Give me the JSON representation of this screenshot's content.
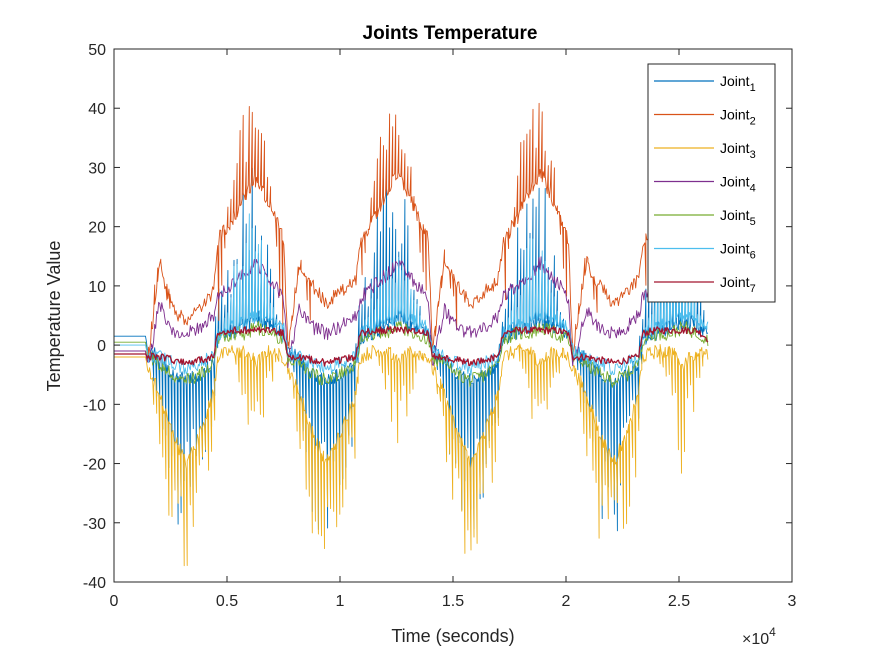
{
  "chart_data": {
    "type": "line",
    "title": "Joints Temperature",
    "xlabel": "Time (seconds)",
    "ylabel": "Temperature Value",
    "x_exponent_label": "×10",
    "x_exponent_power": "4",
    "xlim": [
      0,
      30000
    ],
    "ylim": [
      -40,
      50
    ],
    "xticks": [
      0,
      5000,
      10000,
      15000,
      20000,
      25000,
      30000
    ],
    "xtick_labels": [
      "0",
      "0.5",
      "1",
      "1.5",
      "2",
      "2.5",
      "3"
    ],
    "yticks": [
      -40,
      -30,
      -20,
      -10,
      0,
      10,
      20,
      30,
      40,
      50
    ],
    "ytick_labels": [
      "-40",
      "-30",
      "-20",
      "-10",
      "0",
      "10",
      "20",
      "30",
      "40",
      "50"
    ],
    "grid": false,
    "legend_position": "top-right",
    "x": [
      0,
      1400,
      1500,
      2000,
      2600,
      3200,
      3800,
      4400,
      4600,
      5200,
      5800,
      6300,
      6900,
      7500,
      7700,
      8200,
      8800,
      9400,
      10000,
      10700,
      10900,
      11500,
      12100,
      12600,
      13200,
      13900,
      14100,
      14600,
      15200,
      15800,
      16400,
      17000,
      17200,
      17800,
      18400,
      18900,
      19500,
      20100,
      20300,
      20900,
      21500,
      22100,
      22700,
      23200,
      23400,
      24000,
      24600,
      25200,
      25800,
      26300
    ],
    "series": [
      {
        "name": "Joint",
        "sub": "1",
        "color": "#0072BD",
        "values": [
          1.5,
          1.5,
          -1,
          -2,
          -5,
          -6,
          -5,
          -3,
          1,
          2,
          3,
          4,
          3,
          2,
          -1,
          -2,
          -5,
          -6,
          -5,
          -3,
          1,
          2,
          3,
          4,
          3,
          2,
          -1,
          -2,
          -5,
          -6,
          -5,
          -3,
          1,
          2,
          3,
          4,
          3,
          2,
          -1,
          -2,
          -5,
          -6,
          -5,
          -3,
          1,
          2,
          3,
          4,
          3,
          2
        ],
        "spike_down": [
          0,
          0,
          0,
          -12,
          -30,
          -34,
          -25,
          -15,
          0,
          0,
          0,
          0,
          0,
          0,
          0,
          -12,
          -30,
          -34,
          -25,
          -15,
          0,
          0,
          0,
          0,
          0,
          0,
          0,
          -12,
          -30,
          -34,
          -25,
          -15,
          0,
          0,
          0,
          0,
          0,
          0,
          0,
          -12,
          -30,
          -34,
          -25,
          -15,
          0,
          0,
          0,
          0,
          0,
          0
        ],
        "spike_up": [
          0,
          0,
          0,
          0,
          0,
          0,
          0,
          0,
          10,
          20,
          33,
          34,
          15,
          0,
          0,
          0,
          0,
          0,
          0,
          0,
          10,
          20,
          33,
          34,
          15,
          0,
          0,
          0,
          0,
          0,
          0,
          0,
          10,
          20,
          33,
          34,
          15,
          0,
          0,
          0,
          0,
          0,
          0,
          0,
          10,
          20,
          33,
          34,
          15,
          0
        ]
      },
      {
        "name": "Joint",
        "sub": "2",
        "color": "#D95319",
        "values": [
          -1,
          -1,
          -4,
          14,
          6,
          4,
          6,
          9,
          18,
          21,
          25,
          28,
          24,
          18,
          -1,
          14,
          10,
          7,
          9,
          11,
          17,
          21,
          26,
          29,
          24,
          18,
          -1,
          14,
          10,
          7,
          9,
          11,
          17,
          21,
          26,
          29,
          24,
          18,
          -1,
          14,
          10,
          7,
          9,
          11,
          17,
          21,
          26,
          29,
          24,
          18
        ],
        "spike_down": [
          0,
          0,
          0,
          0,
          0,
          0,
          0,
          0,
          0,
          0,
          0,
          0,
          0,
          0,
          0,
          0,
          0,
          0,
          0,
          0,
          0,
          0,
          0,
          0,
          0,
          0,
          0,
          0,
          0,
          0,
          0,
          0,
          0,
          0,
          0,
          0,
          0,
          0,
          0,
          0,
          0,
          0,
          0,
          0,
          0,
          0,
          0,
          0,
          0,
          0
        ],
        "spike_up": [
          0,
          0,
          0,
          17,
          0,
          0,
          0,
          0,
          0,
          32,
          40,
          43,
          30,
          0,
          0,
          17,
          0,
          0,
          0,
          0,
          0,
          32,
          40,
          42,
          30,
          0,
          0,
          17,
          0,
          0,
          0,
          0,
          0,
          32,
          40,
          44,
          30,
          0,
          0,
          17,
          0,
          0,
          0,
          0,
          0,
          32,
          38,
          40,
          30,
          0
        ]
      },
      {
        "name": "Joint",
        "sub": "3",
        "color": "#EDB120",
        "values": [
          -2,
          -2,
          -4,
          -8,
          -15,
          -20,
          -15,
          -8,
          -2,
          -1,
          -1,
          -3,
          -1,
          -2,
          -4,
          -8,
          -15,
          -20,
          -15,
          -8,
          -2,
          -1,
          -1,
          -3,
          -1,
          -2,
          -4,
          -8,
          -15,
          -20,
          -15,
          -8,
          -2,
          -1,
          -1,
          -3,
          -1,
          -2,
          -4,
          -8,
          -15,
          -20,
          -15,
          -8,
          -2,
          -1,
          -1,
          -3,
          -1,
          -2
        ],
        "spike_down": [
          0,
          0,
          0,
          -20,
          -35,
          -39,
          -30,
          -20,
          0,
          0,
          -12,
          -18,
          -8,
          0,
          0,
          -20,
          -35,
          -38,
          -30,
          -20,
          0,
          0,
          -12,
          -18,
          -8,
          0,
          0,
          -20,
          -35,
          -38,
          -30,
          -20,
          0,
          0,
          -12,
          -18,
          -8,
          0,
          0,
          -20,
          -35,
          -38,
          -30,
          -20,
          0,
          0,
          -12,
          -24,
          -8,
          0
        ],
        "spike_up": [
          0,
          0,
          0,
          0,
          0,
          0,
          0,
          0,
          0,
          0,
          0,
          0,
          0,
          0,
          0,
          0,
          0,
          0,
          0,
          0,
          0,
          0,
          0,
          0,
          0,
          0,
          0,
          0,
          0,
          0,
          0,
          0,
          0,
          0,
          0,
          0,
          0,
          0,
          0,
          0,
          0,
          0,
          0,
          0,
          0,
          0,
          0,
          0,
          0,
          0
        ]
      },
      {
        "name": "Joint",
        "sub": "4",
        "color": "#7E2F8E",
        "values": [
          -1,
          -1,
          -4,
          7,
          2,
          2,
          3,
          5,
          8,
          10,
          12,
          14,
          11,
          8,
          -3,
          6,
          3,
          2,
          3,
          5,
          8,
          10,
          12,
          14,
          11,
          8,
          -3,
          6,
          3,
          2,
          3,
          5,
          8,
          10,
          12,
          14,
          11,
          8,
          -3,
          6,
          3,
          2,
          3,
          5,
          8,
          10,
          12,
          14,
          11,
          8
        ],
        "spike_down": [
          0,
          0,
          0,
          0,
          0,
          0,
          0,
          0,
          0,
          0,
          0,
          0,
          0,
          0,
          0,
          0,
          0,
          0,
          0,
          0,
          0,
          0,
          0,
          0,
          0,
          0,
          0,
          0,
          0,
          0,
          0,
          0,
          0,
          0,
          0,
          0,
          0,
          0,
          0,
          0,
          0,
          0,
          0,
          0,
          0,
          0,
          0,
          0,
          0,
          0
        ],
        "spike_up": [
          0,
          0,
          0,
          0,
          0,
          0,
          0,
          0,
          0,
          0,
          0,
          0,
          0,
          0,
          0,
          0,
          0,
          0,
          0,
          0,
          0,
          0,
          0,
          0,
          0,
          0,
          0,
          0,
          0,
          0,
          0,
          0,
          0,
          0,
          0,
          0,
          0,
          0,
          0,
          0,
          0,
          0,
          0,
          0,
          0,
          0,
          0,
          0,
          0,
          0
        ]
      },
      {
        "name": "Joint",
        "sub": "5",
        "color": "#77AC30",
        "values": [
          0.5,
          0.5,
          -2,
          -3,
          -5,
          -6,
          -5,
          -3,
          1,
          2,
          2,
          3,
          2,
          1,
          -2,
          -3,
          -5,
          -6,
          -5,
          -3,
          1,
          2,
          2,
          3,
          2,
          1,
          -2,
          -3,
          -5,
          -6,
          -5,
          -3,
          1,
          2,
          2,
          3,
          2,
          1,
          -2,
          -3,
          -5,
          -6,
          -5,
          -3,
          1,
          2,
          2,
          3,
          2,
          1
        ],
        "spike_down": [
          0,
          0,
          0,
          0,
          0,
          0,
          0,
          0,
          0,
          0,
          0,
          0,
          0,
          0,
          0,
          0,
          0,
          0,
          0,
          0,
          0,
          0,
          0,
          0,
          0,
          0,
          0,
          0,
          0,
          0,
          0,
          0,
          0,
          0,
          0,
          0,
          0,
          0,
          0,
          0,
          0,
          0,
          0,
          0,
          0,
          0,
          0,
          0,
          0,
          0
        ],
        "spike_up": [
          0,
          0,
          0,
          0,
          0,
          0,
          0,
          0,
          0,
          0,
          0,
          0,
          0,
          0,
          0,
          0,
          0,
          0,
          0,
          0,
          0,
          0,
          0,
          0,
          0,
          0,
          0,
          0,
          0,
          0,
          0,
          0,
          0,
          0,
          0,
          0,
          0,
          0,
          0,
          0,
          0,
          0,
          0,
          0,
          0,
          0,
          0,
          0,
          0,
          0
        ]
      },
      {
        "name": "Joint",
        "sub": "6",
        "color": "#4DBEEE",
        "values": [
          0,
          0,
          -2,
          -2,
          -3,
          -4,
          -3,
          -2,
          2,
          3,
          4,
          5,
          4,
          3,
          -1,
          -2,
          -3,
          -4,
          -3,
          -2,
          2,
          3,
          4,
          5,
          4,
          3,
          -1,
          -2,
          -3,
          -4,
          -3,
          -2,
          2,
          3,
          4,
          5,
          4,
          3,
          -1,
          -2,
          -3,
          -4,
          -3,
          -2,
          2,
          3,
          4,
          5,
          4,
          3
        ],
        "spike_down": [
          0,
          0,
          0,
          0,
          0,
          0,
          0,
          0,
          0,
          0,
          0,
          0,
          0,
          0,
          0,
          0,
          0,
          0,
          0,
          0,
          0,
          0,
          0,
          0,
          0,
          0,
          0,
          0,
          0,
          0,
          0,
          0,
          0,
          0,
          0,
          0,
          0,
          0,
          0,
          0,
          0,
          0,
          0,
          0,
          0,
          0,
          0,
          0,
          0,
          0
        ],
        "spike_up": [
          0,
          0,
          0,
          0,
          0,
          0,
          0,
          0,
          0,
          12,
          22,
          25,
          10,
          0,
          0,
          0,
          0,
          0,
          0,
          0,
          0,
          12,
          18,
          20,
          10,
          0,
          0,
          0,
          0,
          0,
          0,
          0,
          0,
          12,
          18,
          20,
          10,
          0,
          0,
          0,
          0,
          0,
          0,
          0,
          0,
          12,
          18,
          20,
          10,
          0
        ]
      },
      {
        "name": "Joint",
        "sub": "7",
        "color": "#A2142F",
        "values": [
          -1.5,
          -1.5,
          -2,
          -2,
          -2.5,
          -3,
          -2.5,
          -2,
          2,
          2.5,
          2.5,
          2.5,
          2.5,
          2,
          -2,
          -2,
          -2.5,
          -3,
          -2.5,
          -2,
          2,
          2.5,
          2.5,
          2.5,
          2.5,
          2,
          -2,
          -2,
          -2.5,
          -3,
          -2.5,
          -2,
          2,
          2.5,
          2.5,
          2.5,
          2.5,
          2,
          -2,
          -2,
          -2.5,
          -3,
          -2.5,
          -2,
          2,
          2.5,
          2.5,
          2.5,
          2.5,
          1
        ],
        "spike_down": [
          0,
          0,
          0,
          0,
          0,
          0,
          0,
          0,
          0,
          0,
          0,
          0,
          0,
          0,
          0,
          0,
          0,
          0,
          0,
          0,
          0,
          0,
          0,
          0,
          0,
          0,
          0,
          0,
          0,
          0,
          0,
          0,
          0,
          0,
          0,
          0,
          0,
          0,
          0,
          0,
          0,
          0,
          0,
          0,
          0,
          0,
          0,
          0,
          0,
          0
        ],
        "spike_up": [
          0,
          0,
          0,
          0,
          0,
          0,
          0,
          0,
          0,
          0,
          0,
          0,
          0,
          0,
          0,
          0,
          0,
          0,
          0,
          0,
          0,
          0,
          0,
          0,
          0,
          0,
          0,
          0,
          0,
          0,
          0,
          0,
          0,
          0,
          0,
          0,
          0,
          0,
          0,
          0,
          0,
          0,
          0,
          0,
          0,
          0,
          0,
          0,
          0,
          0
        ]
      }
    ]
  }
}
